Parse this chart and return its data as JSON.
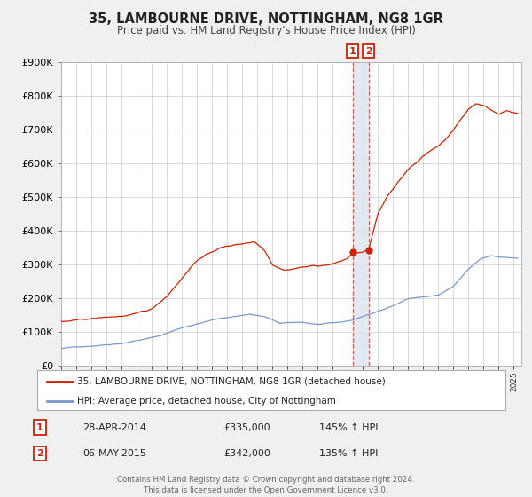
{
  "title": "35, LAMBOURNE DRIVE, NOTTINGHAM, NG8 1GR",
  "subtitle": "Price paid vs. HM Land Registry's House Price Index (HPI)",
  "legend_line1": "35, LAMBOURNE DRIVE, NOTTINGHAM, NG8 1GR (detached house)",
  "legend_line2": "HPI: Average price, detached house, City of Nottingham",
  "footer1": "Contains HM Land Registry data © Crown copyright and database right 2024.",
  "footer2": "This data is licensed under the Open Government Licence v3.0.",
  "hpi_color": "#7799cc",
  "price_color": "#cc2200",
  "marker_color": "#cc2200",
  "vband_color": "#dce4f0",
  "vline_color": "#cc4444",
  "point1_date": 2014.32,
  "point1_value": 335000,
  "point2_date": 2015.37,
  "point2_value": 342000,
  "table_row1": [
    "1",
    "28-APR-2014",
    "£335,000",
    "145% ↑ HPI"
  ],
  "table_row2": [
    "2",
    "06-MAY-2015",
    "£342,000",
    "135% ↑ HPI"
  ],
  "ylim": [
    0,
    900000
  ],
  "xlim_start": 1995.0,
  "xlim_end": 2025.5,
  "bg_color": "#f0f0f0",
  "plot_bg": "#ffffff",
  "grid_color": "#cccccc",
  "legend_border": "#aaaaaa",
  "tick_color": "#333333",
  "title_color": "#222222",
  "subtitle_color": "#444444"
}
